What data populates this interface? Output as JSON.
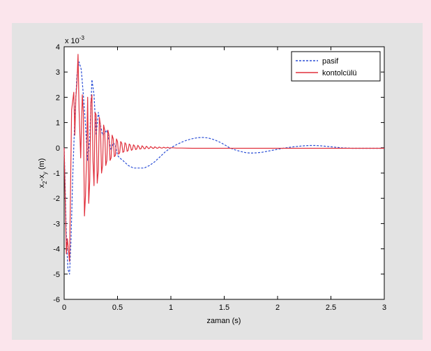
{
  "chart_data": {
    "type": "line",
    "xlabel": "zaman (s)",
    "ylabel_main": "x",
    "ylabel_sub1": "2",
    "ylabel_mid": "-x",
    "ylabel_sub2": "y",
    "ylabel_unit": " (m)",
    "exponent_base": "x 10",
    "exponent_power": "-3",
    "xlim": [
      0,
      3
    ],
    "ylim": [
      -6,
      4
    ],
    "xticks": [
      0,
      0.5,
      1,
      1.5,
      2,
      2.5,
      3
    ],
    "xtick_labels": [
      "0",
      "0.5",
      "1",
      "1.5",
      "2",
      "2.5",
      "3"
    ],
    "yticks": [
      -6,
      -5,
      -4,
      -3,
      -2,
      -1,
      0,
      1,
      2,
      3,
      4
    ],
    "ytick_labels": [
      "-6",
      "-5",
      "-4",
      "-3",
      "-2",
      "-1",
      "0",
      "1",
      "2",
      "3",
      "4"
    ],
    "legend_position": "top-right",
    "series": [
      {
        "name": "pasif",
        "style": "dashed",
        "color": "#2b4fd6",
        "x": [
          0,
          0.01,
          0.02,
          0.035,
          0.05,
          0.065,
          0.08,
          0.1,
          0.12,
          0.14,
          0.16,
          0.18,
          0.2,
          0.22,
          0.24,
          0.26,
          0.28,
          0.3,
          0.32,
          0.34,
          0.36,
          0.38,
          0.4,
          0.42,
          0.44,
          0.46,
          0.48,
          0.5,
          0.52,
          0.55,
          0.6,
          0.65,
          0.7,
          0.75,
          0.8,
          0.85,
          0.9,
          0.95,
          1.0,
          1.05,
          1.1,
          1.15,
          1.2,
          1.25,
          1.3,
          1.35,
          1.4,
          1.45,
          1.5,
          1.55,
          1.6,
          1.65,
          1.7,
          1.75,
          1.8,
          1.85,
          1.9,
          1.95,
          2.0,
          2.05,
          2.1,
          2.15,
          2.2,
          2.25,
          2.3,
          2.35,
          2.4,
          2.45,
          2.5,
          2.55,
          2.6,
          2.65,
          2.7,
          2.75,
          2.8,
          2.85,
          2.9,
          2.95,
          3.0
        ],
        "y": [
          0,
          -1.6,
          -3.5,
          -4.8,
          -5.0,
          -3.6,
          -1.2,
          1.2,
          2.9,
          3.4,
          3.1,
          2.1,
          0.9,
          -0.5,
          0.4,
          2.7,
          2.1,
          0.5,
          1.4,
          0.9,
          0.5,
          0.6,
          0.7,
          0.3,
          -0.1,
          0.2,
          0.1,
          -0.3,
          -0.4,
          -0.5,
          -0.7,
          -0.8,
          -0.8,
          -0.8,
          -0.7,
          -0.55,
          -0.35,
          -0.15,
          0.0,
          0.12,
          0.22,
          0.3,
          0.36,
          0.4,
          0.41,
          0.39,
          0.33,
          0.24,
          0.13,
          0.0,
          -0.08,
          -0.14,
          -0.19,
          -0.21,
          -0.2,
          -0.18,
          -0.14,
          -0.1,
          -0.06,
          -0.02,
          0.01,
          0.04,
          0.06,
          0.08,
          0.09,
          0.09,
          0.08,
          0.06,
          0.04,
          0.02,
          0.0,
          -0.01,
          -0.02,
          -0.02,
          -0.02,
          -0.02,
          -0.02,
          -0.02,
          -0.02
        ]
      },
      {
        "name": "kontolcülü",
        "style": "solid",
        "color": "#e0303c",
        "x": [
          0,
          0.01,
          0.02,
          0.03,
          0.05,
          0.07,
          0.09,
          0.1,
          0.11,
          0.12,
          0.13,
          0.14,
          0.155,
          0.17,
          0.18,
          0.19,
          0.2,
          0.21,
          0.22,
          0.23,
          0.24,
          0.25,
          0.26,
          0.27,
          0.28,
          0.29,
          0.3,
          0.31,
          0.32,
          0.33,
          0.34,
          0.35,
          0.36,
          0.37,
          0.38,
          0.39,
          0.4,
          0.41,
          0.42,
          0.43,
          0.44,
          0.45,
          0.46,
          0.47,
          0.48,
          0.49,
          0.5,
          0.51,
          0.52,
          0.53,
          0.54,
          0.55,
          0.56,
          0.57,
          0.58,
          0.59,
          0.6,
          0.61,
          0.62,
          0.63,
          0.64,
          0.65,
          0.66,
          0.67,
          0.68,
          0.69,
          0.7,
          0.71,
          0.72,
          0.73,
          0.74,
          0.75,
          0.76,
          0.77,
          0.78,
          0.79,
          0.8,
          0.81,
          0.82,
          0.83,
          0.84,
          0.85,
          0.86,
          0.87,
          0.88,
          0.89,
          0.9,
          0.91,
          0.92,
          0.93,
          0.94,
          0.95,
          0.96,
          0.97,
          0.98,
          0.99,
          1.0,
          1.02,
          1.05,
          1.1,
          1.2,
          1.4,
          1.6,
          1.8,
          2.0,
          2.5,
          3.0
        ],
        "y": [
          0,
          -2.0,
          -4.2,
          -3.6,
          -4.5,
          1.5,
          2.2,
          0.5,
          2.0,
          2.6,
          3.7,
          1.5,
          -0.4,
          2.1,
          1.4,
          -2.7,
          -1.9,
          -0.4,
          2.0,
          -2.2,
          -1.3,
          1.8,
          2.1,
          -0.5,
          -1.5,
          1.4,
          1.3,
          -1.4,
          -0.9,
          1.2,
          0.9,
          -1.0,
          -0.7,
          0.9,
          0.7,
          -0.7,
          -0.5,
          0.7,
          0.5,
          -0.5,
          -0.4,
          0.5,
          0.35,
          -0.35,
          -0.3,
          0.35,
          0.25,
          -0.25,
          -0.2,
          0.25,
          0.18,
          -0.18,
          -0.15,
          0.2,
          0.14,
          -0.14,
          -0.1,
          0.15,
          0.1,
          -0.1,
          -0.07,
          0.12,
          0.07,
          -0.07,
          -0.05,
          0.1,
          0.05,
          -0.05,
          -0.04,
          0.08,
          0.04,
          -0.04,
          -0.03,
          0.06,
          0.03,
          -0.03,
          -0.02,
          0.05,
          0.02,
          -0.02,
          -0.02,
          0.04,
          0.01,
          -0.02,
          -0.01,
          0.03,
          0.01,
          -0.01,
          -0.01,
          0.02,
          0.01,
          -0.01,
          0.0,
          0.02,
          0.0,
          -0.01,
          0.0,
          0.0,
          -0.01,
          -0.01,
          -0.02,
          -0.02,
          -0.02,
          -0.02,
          -0.02,
          -0.02,
          -0.02
        ]
      }
    ]
  }
}
